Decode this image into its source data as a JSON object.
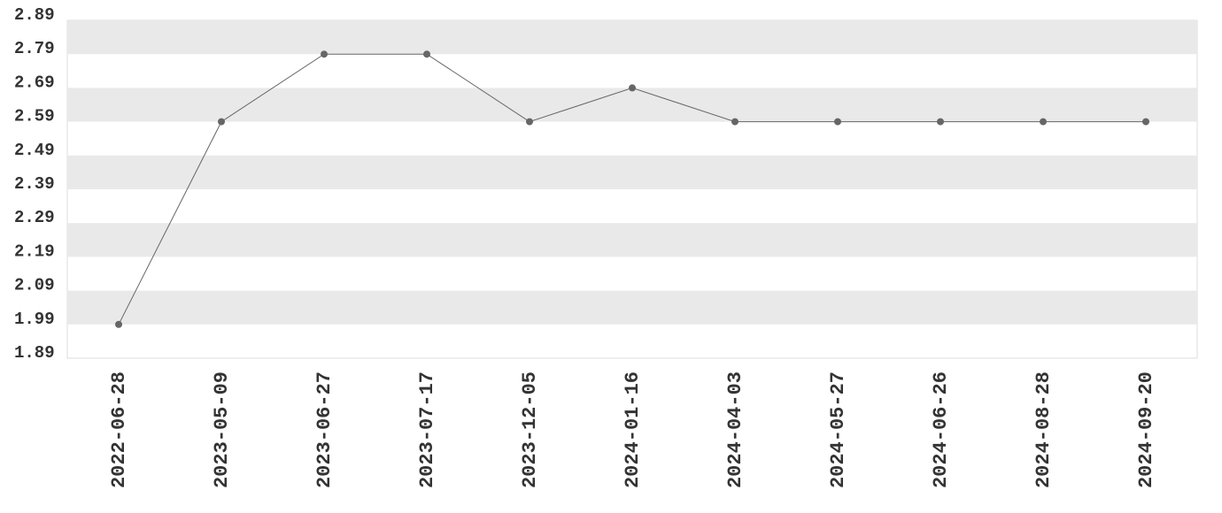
{
  "chart_data": {
    "type": "line",
    "categories": [
      "2022-06-28",
      "2023-05-09",
      "2023-06-27",
      "2023-07-17",
      "2023-12-05",
      "2024-01-16",
      "2024-04-03",
      "2024-05-27",
      "2024-06-26",
      "2024-08-28",
      "2024-09-20"
    ],
    "values": [
      1.99,
      2.59,
      2.79,
      2.79,
      2.59,
      2.69,
      2.59,
      2.59,
      2.59,
      2.59,
      2.59
    ],
    "color": "#666666",
    "ylim": [
      1.89,
      2.89
    ],
    "yticks": [
      1.89,
      1.99,
      2.09,
      2.19,
      2.29,
      2.39,
      2.49,
      2.59,
      2.69,
      2.79,
      2.89
    ],
    "grid": true
  }
}
